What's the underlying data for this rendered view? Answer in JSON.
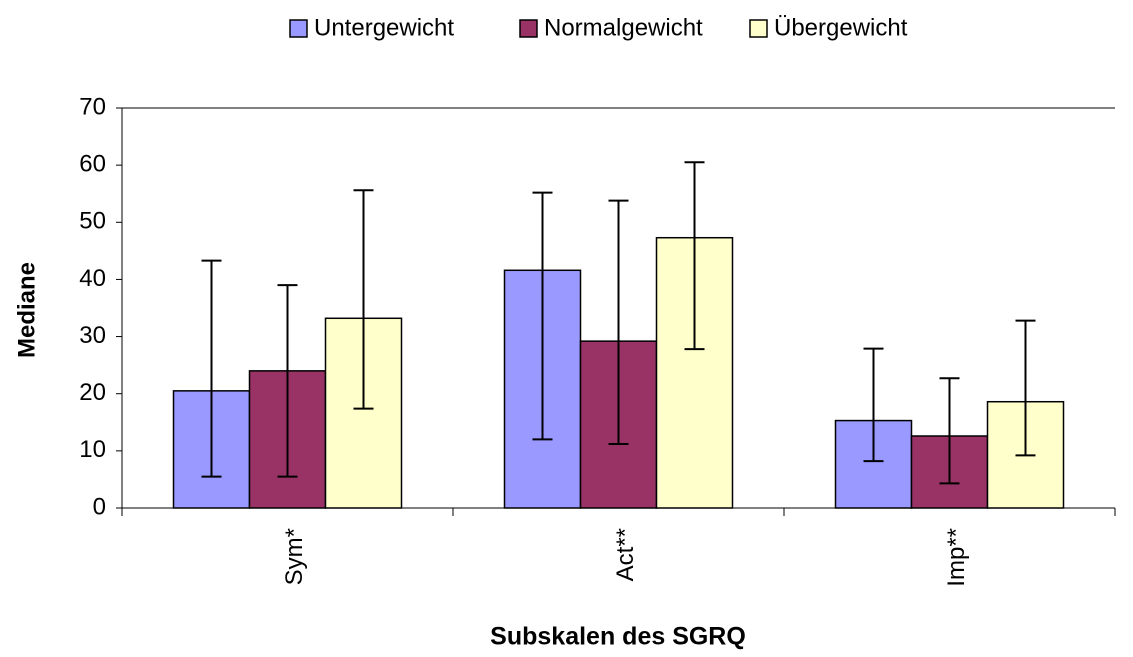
{
  "chart_data": {
    "type": "bar",
    "categories": [
      "Sym*",
      "Act**",
      "Imp**"
    ],
    "series": [
      {
        "name": "Untergewicht",
        "color": "#9999ff",
        "values": [
          20.5,
          41.6,
          15.3
        ],
        "lower": [
          5.5,
          12,
          8.2
        ],
        "upper": [
          43.3,
          55.2,
          27.9
        ]
      },
      {
        "name": "Normalgewicht",
        "color": "#993366",
        "values": [
          24,
          29.2,
          12.6
        ],
        "lower": [
          5.5,
          11.2,
          4.3
        ],
        "upper": [
          39,
          53.8,
          22.7
        ]
      },
      {
        "name": "Übergewicht",
        "color": "#ffffcc",
        "values": [
          33.2,
          47.3,
          18.6
        ],
        "lower": [
          17.4,
          27.8,
          9.2
        ],
        "upper": [
          55.6,
          60.5,
          32.8
        ]
      }
    ],
    "ylabel": "Mediane",
    "xlabel": "Subskalen des SGRQ",
    "ylim": [
      0,
      70
    ],
    "yticks": [
      0,
      10,
      20,
      30,
      40,
      50,
      60,
      70
    ],
    "grid": false,
    "legend": "top"
  }
}
